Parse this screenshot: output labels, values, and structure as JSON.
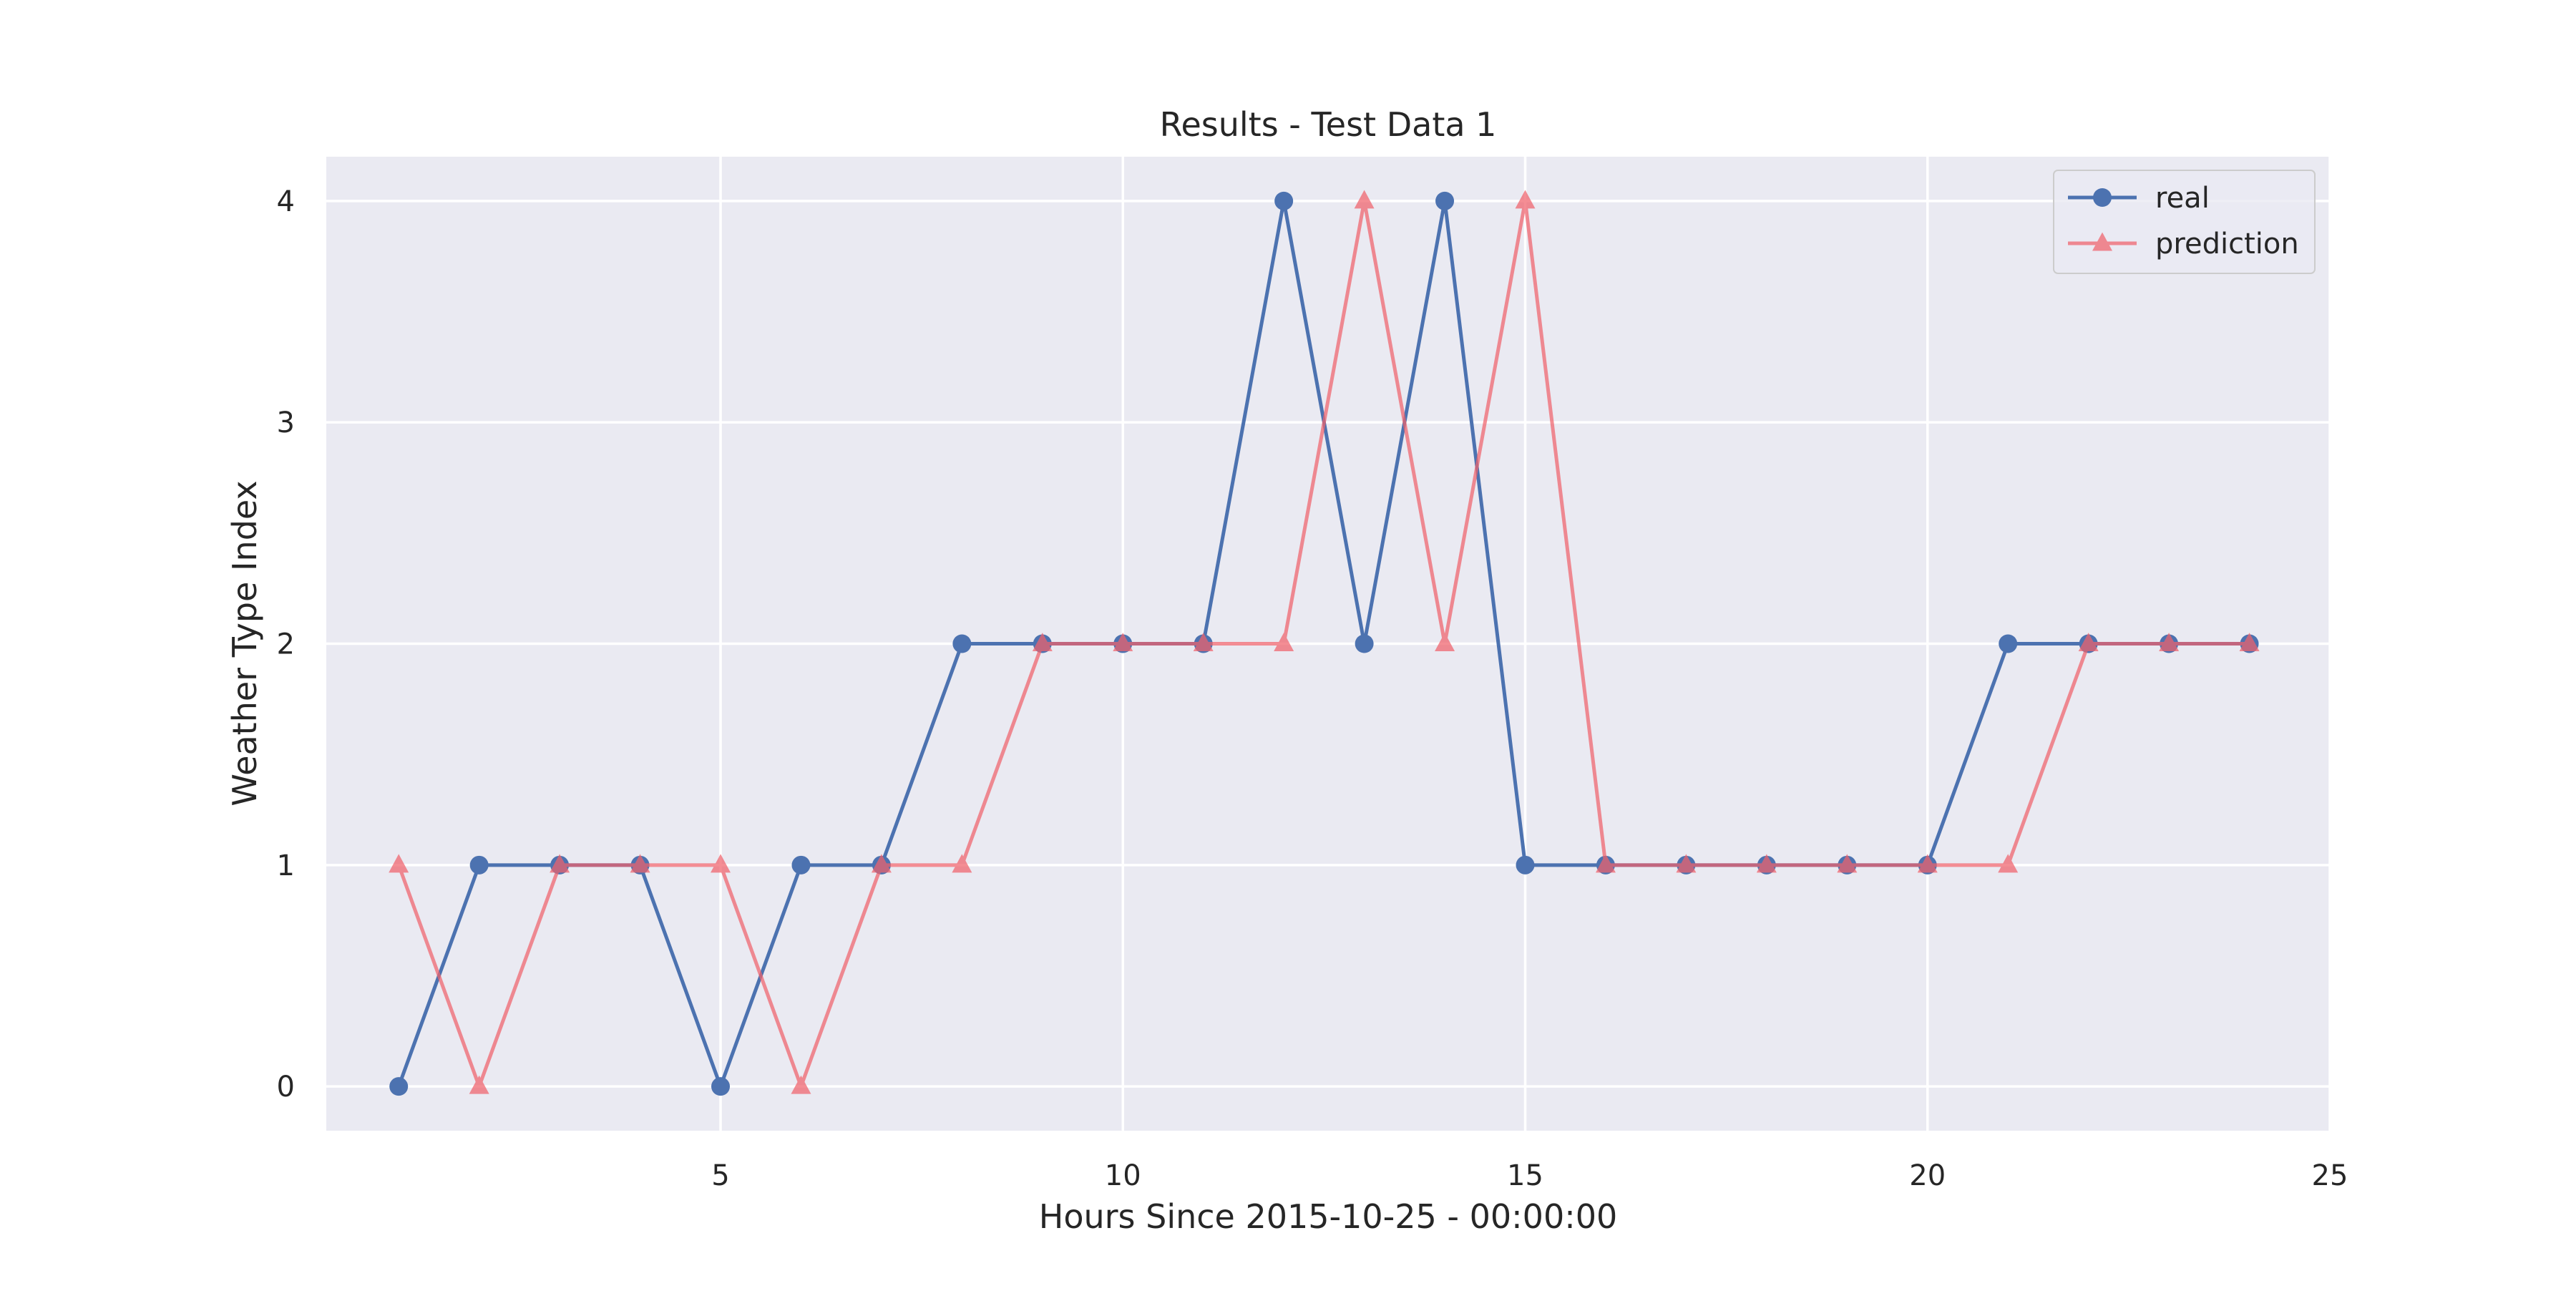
{
  "chart_data": {
    "type": "line",
    "title": "Results - Test Data 1",
    "xlabel": "Hours Since 2015-10-25 - 00:00:00",
    "ylabel": "Weather Type Index",
    "x": [
      1,
      2,
      3,
      4,
      5,
      6,
      7,
      8,
      9,
      10,
      11,
      12,
      13,
      14,
      15,
      16,
      17,
      18,
      19,
      20,
      21,
      22,
      23,
      24
    ],
    "xlim": [
      0.1,
      25
    ],
    "ylim": [
      -0.2,
      4.2
    ],
    "xticks": [
      5,
      10,
      15,
      20,
      25
    ],
    "yticks": [
      0,
      1,
      2,
      3,
      4
    ],
    "xtick_labels": [
      "5",
      "10",
      "15",
      "20",
      "25"
    ],
    "ytick_labels": [
      "0",
      "1",
      "2",
      "3",
      "4"
    ],
    "grid": true,
    "legend_position": "top-right",
    "colors": {
      "background": "#eaeaf2",
      "grid": "#ffffff"
    },
    "series": [
      {
        "name": "real",
        "marker": "circle",
        "color": "#4c72b0",
        "values": [
          0,
          1,
          1,
          1,
          0,
          1,
          1,
          2,
          2,
          2,
          2,
          4,
          2,
          4,
          1,
          1,
          1,
          1,
          1,
          1,
          2,
          2,
          2,
          2
        ]
      },
      {
        "name": "prediction",
        "marker": "triangle",
        "color": "#f0626b",
        "values": [
          1,
          0,
          1,
          1,
          1,
          0,
          1,
          1,
          2,
          2,
          2,
          2,
          4,
          2,
          4,
          1,
          1,
          1,
          1,
          1,
          1,
          2,
          2,
          2
        ]
      }
    ]
  }
}
